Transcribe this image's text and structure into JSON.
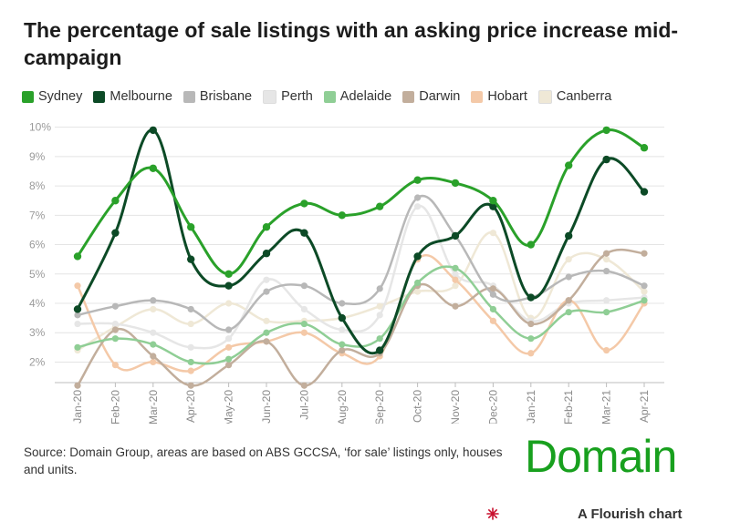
{
  "header": {
    "title": "The percentage of sale listings with an asking price increase mid-campaign"
  },
  "footer": {
    "source": "Source: Domain Group, areas are based on ABS GCCSA, ‘for sale’ listings only, houses and units.",
    "brand": "Domain",
    "attribution": "A Flourish chart",
    "attribution_icon": "flourish-asterisk-icon"
  },
  "chart_data": {
    "type": "line",
    "title": "The percentage of sale listings with an asking price increase mid-campaign",
    "xlabel": "",
    "ylabel": "",
    "categories": [
      "Jan-20",
      "Feb-20",
      "Mar-20",
      "Apr-20",
      "May-20",
      "Jun-20",
      "Jul-20",
      "Aug-20",
      "Sep-20",
      "Oct-20",
      "Nov-20",
      "Dec-20",
      "Jan-21",
      "Feb-21",
      "Mar-21",
      "Apr-21"
    ],
    "y_ticks": [
      "2%",
      "3%",
      "4%",
      "5%",
      "6%",
      "7%",
      "8%",
      "9%",
      "10%"
    ],
    "ylim": [
      1.3,
      10.3
    ],
    "grid": true,
    "legend_position": "top-left",
    "series": [
      {
        "name": "Sydney",
        "color": "#2aa12a",
        "values": [
          5.6,
          7.5,
          8.6,
          6.6,
          5.0,
          6.6,
          7.4,
          7.0,
          7.3,
          8.2,
          8.1,
          7.5,
          6.0,
          8.7,
          9.9,
          9.3
        ]
      },
      {
        "name": "Melbourne",
        "color": "#0c4a26",
        "values": [
          3.8,
          6.4,
          9.9,
          5.5,
          4.6,
          5.7,
          6.4,
          3.5,
          2.4,
          5.6,
          6.3,
          7.3,
          4.2,
          6.3,
          8.9,
          7.8
        ]
      },
      {
        "name": "Brisbane",
        "color": "#b8b8b8",
        "values": [
          3.6,
          3.9,
          4.1,
          3.8,
          3.1,
          4.4,
          4.6,
          4.0,
          4.5,
          7.6,
          6.3,
          4.3,
          4.2,
          4.9,
          5.1,
          4.6
        ]
      },
      {
        "name": "Perth",
        "color": "#e6e6e6",
        "values": [
          3.3,
          3.3,
          3.0,
          2.5,
          2.8,
          4.8,
          3.8,
          3.1,
          3.6,
          7.3,
          5.0,
          4.6,
          3.4,
          4.0,
          4.1,
          4.2
        ]
      },
      {
        "name": "Adelaide",
        "color": "#8fce95",
        "values": [
          2.5,
          2.8,
          2.6,
          2.0,
          2.1,
          3.0,
          3.3,
          2.6,
          2.8,
          4.7,
          5.2,
          3.8,
          2.8,
          3.7,
          3.7,
          4.1
        ]
      },
      {
        "name": "Darwin",
        "color": "#c2ae9c",
        "values": [
          1.2,
          3.1,
          2.2,
          1.2,
          1.9,
          2.7,
          1.2,
          2.4,
          2.3,
          4.6,
          3.9,
          4.5,
          3.3,
          4.1,
          5.7,
          5.7
        ]
      },
      {
        "name": "Hobart",
        "color": "#f4c9a8",
        "values": [
          4.6,
          1.9,
          2.0,
          1.7,
          2.5,
          2.7,
          3.0,
          2.3,
          2.2,
          5.5,
          4.8,
          3.4,
          2.3,
          4.1,
          2.4,
          4.0
        ]
      },
      {
        "name": "Canberra",
        "color": "#efe8d6",
        "values": [
          2.4,
          3.2,
          3.8,
          3.3,
          4.0,
          3.4,
          3.4,
          3.5,
          3.9,
          4.4,
          4.6,
          6.4,
          3.5,
          5.5,
          5.5,
          4.4
        ]
      }
    ]
  }
}
